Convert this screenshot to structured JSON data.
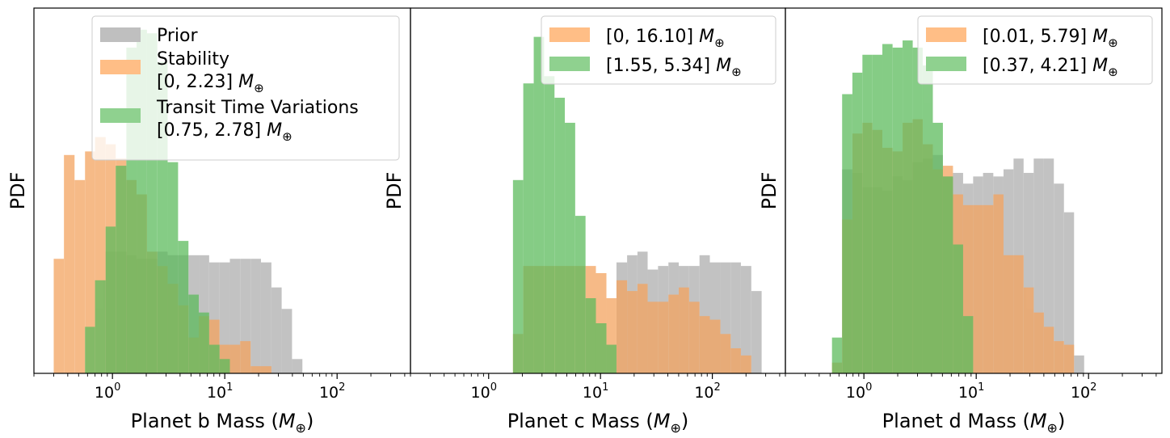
{
  "figure": {
    "colors": {
      "prior": "#bfbfbf",
      "stability": "#ffbe86",
      "ttv": "#8fd18f",
      "ttv_over_stability": "#a6b85c",
      "ttv_over_prior": "#83bb83",
      "stability_over_prior": "#e0a070",
      "all_three": "#6e9a3c",
      "overlap_deep": "#6f943c"
    }
  },
  "chart_data": [
    {
      "type": "histogram",
      "panel": "b",
      "xlabel": "Planet b Mass (M⊕)",
      "xlabel_prefix": "Planet b Mass (",
      "ylabel": "PDF",
      "xscale": "log",
      "xlim": [
        0.2,
        450
      ],
      "ylim": [
        0,
        1
      ],
      "ticks": [
        {
          "base": "10",
          "exp": "0",
          "value": 1
        },
        {
          "base": "10",
          "exp": "1",
          "value": 10
        },
        {
          "base": "10",
          "exp": "2",
          "value": 100
        }
      ],
      "bin_edges": [
        0.3,
        0.37,
        0.46,
        0.57,
        0.7,
        0.87,
        1.07,
        1.33,
        1.64,
        2.03,
        2.51,
        3.1,
        3.84,
        4.75,
        5.87,
        7.26,
        8.98,
        11.1,
        13.7,
        17.0,
        21.0,
        26.0,
        32.1,
        39.7,
        49.1
      ],
      "legend": {
        "position": "upper-center",
        "entries": [
          {
            "series": "prior",
            "label": "Prior"
          },
          {
            "series": "stability",
            "label": "Stability",
            "range": "[0, 2.23]"
          },
          {
            "series": "ttv",
            "label": "Transit Time Variations",
            "range": "[0.75, 2.78]"
          }
        ]
      },
      "series": [
        {
          "name": "prior",
          "values": [
            0,
            0,
            0,
            0,
            0,
            0.34,
            0.34,
            0.33,
            0.32,
            0.32,
            0.34,
            0.33,
            0.33,
            0.33,
            0.33,
            0.31,
            0.31,
            0.32,
            0.32,
            0.32,
            0.31,
            0.24,
            0.18,
            0.04
          ]
        },
        {
          "name": "stability",
          "values": [
            0.32,
            0.61,
            0.54,
            0.62,
            0.66,
            0.64,
            0.6,
            0.54,
            0.5,
            0.34,
            0.3,
            0.25,
            0.19,
            0.1,
            0.16,
            0.15,
            0.08,
            0.08,
            0.09,
            0.02,
            0.02,
            0,
            0,
            0
          ]
        },
        {
          "name": "ttv",
          "values": [
            0,
            0,
            0,
            0.13,
            0.26,
            0.41,
            0.58,
            0.91,
            0.96,
            0.95,
            0.87,
            0.59,
            0.37,
            0.22,
            0.17,
            0.08,
            0.04,
            0,
            0,
            0,
            0,
            0,
            0,
            0
          ]
        }
      ]
    },
    {
      "type": "histogram",
      "panel": "c",
      "xlabel": "Planet c Mass (M⊕)",
      "xlabel_prefix": "Planet c Mass (",
      "ylabel": "PDF",
      "xscale": "log",
      "xlim": [
        0.2,
        450
      ],
      "ylim": [
        0,
        1
      ],
      "ticks": [
        {
          "base": "10",
          "exp": "0",
          "value": 1
        },
        {
          "base": "10",
          "exp": "1",
          "value": 10
        },
        {
          "base": "10",
          "exp": "2",
          "value": 100
        }
      ],
      "bin_edges": [
        1.65,
        2.04,
        2.53,
        3.13,
        3.88,
        4.8,
        5.94,
        7.35,
        9.1,
        11.3,
        13.9,
        17.3,
        21.4,
        26.4,
        32.7,
        40.5,
        50.1,
        62.0,
        76.8,
        95.0,
        118,
        146,
        180,
        223,
        276
      ],
      "legend": {
        "position": "upper-right",
        "entries": [
          {
            "series": "stability",
            "range": "[0, 16.10]"
          },
          {
            "series": "ttv",
            "range": "[1.55, 5.34]"
          }
        ]
      },
      "series": [
        {
          "name": "prior",
          "values": [
            0,
            0,
            0,
            0,
            0,
            0,
            0,
            0,
            0,
            0,
            0.31,
            0.33,
            0.34,
            0.29,
            0.3,
            0.31,
            0.3,
            0.3,
            0.33,
            0.31,
            0.31,
            0.31,
            0.3,
            0.23,
            0
          ]
        },
        {
          "name": "stability",
          "values": [
            0.11,
            0.3,
            0.3,
            0.3,
            0.3,
            0.3,
            0.3,
            0.3,
            0.28,
            0.21,
            0.26,
            0.23,
            0.25,
            0.2,
            0.2,
            0.22,
            0.24,
            0.2,
            0.16,
            0.15,
            0.11,
            0.07,
            0.05,
            0,
            0
          ]
        },
        {
          "name": "ttv",
          "values": [
            0.54,
            0.81,
            0.94,
            0.83,
            0.77,
            0.7,
            0.44,
            0.21,
            0.14,
            0.08,
            0,
            0,
            0,
            0,
            0,
            0,
            0,
            0,
            0,
            0,
            0,
            0,
            0,
            0,
            0
          ]
        }
      ]
    },
    {
      "type": "histogram",
      "panel": "d",
      "xlabel": "Planet d Mass (M⊕)",
      "xlabel_prefix": "Planet d Mass (",
      "ylabel": "PDF",
      "xscale": "log",
      "xlim": [
        0.2,
        450
      ],
      "ylim": [
        0,
        1
      ],
      "ticks": [
        {
          "base": "10",
          "exp": "0",
          "value": 1
        },
        {
          "base": "10",
          "exp": "1",
          "value": 10
        },
        {
          "base": "10",
          "exp": "2",
          "value": 100
        }
      ],
      "bin_edges": [
        0.52,
        0.64,
        0.79,
        0.97,
        1.19,
        1.46,
        1.8,
        2.21,
        2.72,
        3.34,
        4.11,
        5.05,
        6.21,
        7.64,
        9.39,
        11.5,
        14.2,
        17.5,
        21.5,
        26.4,
        32.5,
        40.0,
        49.1,
        60.4,
        74.3,
        91.4
      ],
      "legend": {
        "position": "upper-right",
        "entries": [
          {
            "series": "stability",
            "range": "[0.01, 5.79]"
          },
          {
            "series": "ttv",
            "range": "[0.37, 4.21]"
          }
        ]
      },
      "series": [
        {
          "name": "prior",
          "values": [
            0,
            0.57,
            0.56,
            0.52,
            0.52,
            0.51,
            0.55,
            0.54,
            0.59,
            0.6,
            0.61,
            0.55,
            0.56,
            0.53,
            0.55,
            0.56,
            0.55,
            0.57,
            0.6,
            0.56,
            0.6,
            0.6,
            0.53,
            0.45,
            0.05
          ]
        },
        {
          "name": "stability",
          "values": [
            0.03,
            0.43,
            0.67,
            0.7,
            0.68,
            0.63,
            0.62,
            0.7,
            0.71,
            0.64,
            0.57,
            0.58,
            0.5,
            0.47,
            0.47,
            0.47,
            0.5,
            0.33,
            0.33,
            0.24,
            0.17,
            0.13,
            0.09,
            0.08,
            0
          ]
        },
        {
          "name": "ttv",
          "values": [
            0.1,
            0.78,
            0.84,
            0.89,
            0.89,
            0.92,
            0.91,
            0.93,
            0.91,
            0.86,
            0.7,
            0.55,
            0.36,
            0.16,
            0,
            0,
            0,
            0,
            0,
            0,
            0,
            0,
            0,
            0,
            0
          ]
        }
      ]
    }
  ]
}
